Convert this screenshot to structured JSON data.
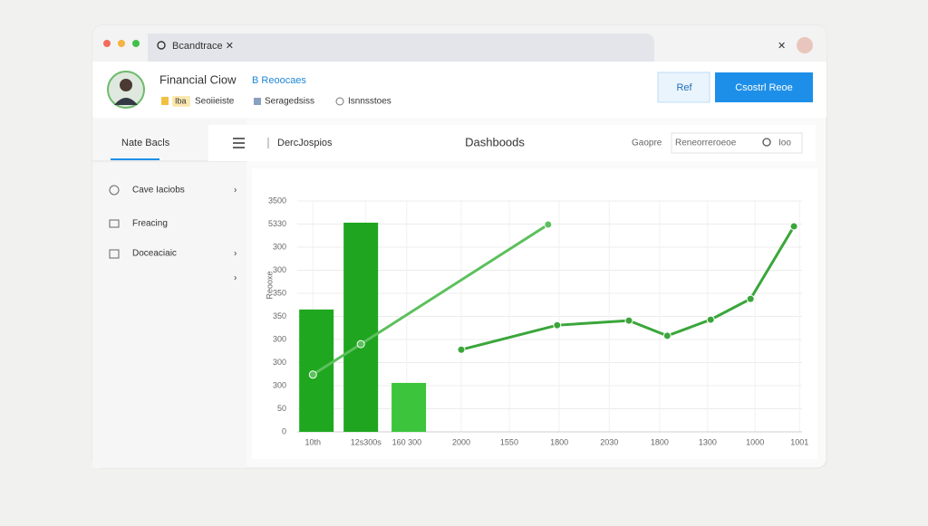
{
  "browser": {
    "tab_title": "Bcandtrace ✕"
  },
  "header": {
    "title": "Financial Ciow",
    "link": "B Reoocaes",
    "badge": "Iba",
    "meta": [
      "Seoiieiste",
      "Seragedsiss",
      "Isnnsstoes"
    ],
    "buttons": [
      "Ref",
      "Csostrl Reoe"
    ]
  },
  "sidebar": {
    "tab": "Nate Bacls",
    "items": [
      "Cave Iaciobs",
      "Freacing",
      "Doceaciaic"
    ]
  },
  "toolbar": {
    "breadcrumb": "DercJospios",
    "title": "Dashboods",
    "filter_label": "Gaopre",
    "search_placeholder": "Reneorreroeoe",
    "search_button": "Ioo"
  },
  "chart_data": {
    "type": "combo",
    "y_label": "Reooxe",
    "grid": true,
    "xlim": [
      0,
      1000
    ],
    "xticks": [
      {
        "value": 31,
        "label": "10th"
      },
      {
        "value": 136,
        "label": "12s300s"
      },
      {
        "value": 217,
        "label": "160 300"
      },
      {
        "value": 325,
        "label": "2000"
      },
      {
        "value": 420,
        "label": "1550"
      },
      {
        "value": 519,
        "label": "1800"
      },
      {
        "value": 618,
        "label": "2030"
      },
      {
        "value": 718,
        "label": "1800"
      },
      {
        "value": 813,
        "label": "1300"
      },
      {
        "value": 907,
        "label": "1000"
      },
      {
        "value": 995,
        "label": "1001"
      }
    ],
    "ylim": [
      0,
      5000
    ],
    "yticks": [
      0,
      {
        "value": 500,
        "label": "50"
      },
      {
        "value": 1000,
        "label": "300"
      },
      {
        "value": 1500,
        "label": "300"
      },
      {
        "value": 2000,
        "label": "300"
      },
      {
        "value": 2500,
        "label": "350"
      },
      {
        "value": 3000,
        "label": "350"
      },
      {
        "value": 3500,
        "label": "300"
      },
      {
        "value": 4000,
        "label": "300"
      },
      {
        "value": 4500,
        "label": "5330"
      },
      {
        "value": 5000,
        "label": "3500"
      }
    ],
    "bars": {
      "x": [
        38,
        126,
        221
      ],
      "values": [
        2650,
        4530,
        1060
      ],
      "colors": [
        "#1fa81f",
        "#1fa51f",
        "#3cc43c"
      ]
    },
    "series": [
      {
        "color": "#5cc05c",
        "x": [
          31,
          126,
          497
        ],
        "values": [
          1240,
          1900,
          4490
        ]
      },
      {
        "color": "#3aa63a",
        "x": [
          325,
          515,
          657,
          733,
          819,
          898,
          984
        ],
        "values": [
          1780,
          2310,
          2410,
          2080,
          2430,
          2880,
          4450
        ]
      }
    ]
  }
}
